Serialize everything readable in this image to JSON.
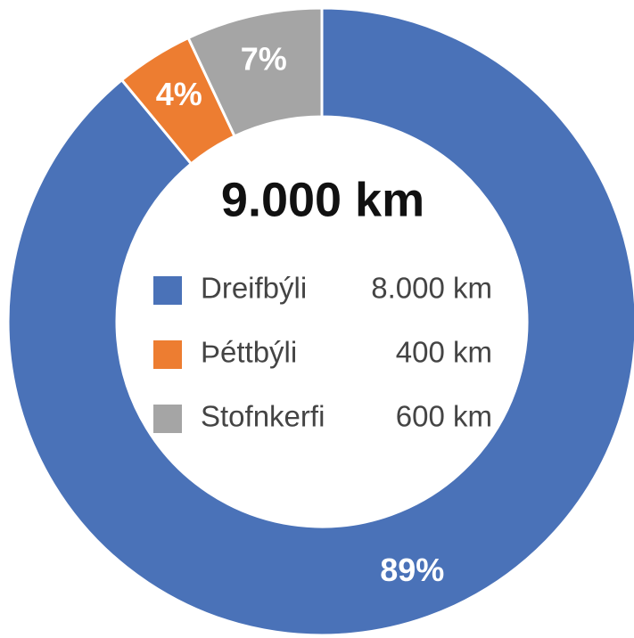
{
  "chart_data": {
    "type": "pie",
    "donut": true,
    "center_label": "9.000 km",
    "categories": [
      "Dreifbýli",
      "Þéttbýli",
      "Stofnkerfi"
    ],
    "values": [
      89,
      4,
      7
    ],
    "value_labels": [
      "89%",
      "4%",
      "7%"
    ],
    "legend_values": [
      "8.000 km",
      "400 km",
      "600 km"
    ],
    "colors": [
      "#4a72b8",
      "#ed7d31",
      "#a5a5a5"
    ]
  }
}
